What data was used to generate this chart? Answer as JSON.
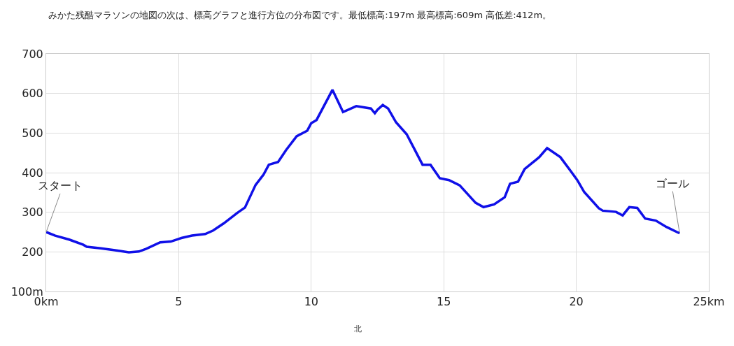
{
  "chart_data": {
    "type": "line",
    "title": "みかた残酷マラソンの地図の次は、標高グラフと進行方位の分布図です。最低標高:197m 最高標高:609m 高低差:412m。",
    "x": [
      0,
      0.34,
      0.87,
      1.4,
      1.53,
      2.06,
      2.6,
      3.12,
      3.5,
      3.78,
      4.3,
      4.7,
      5.1,
      5.5,
      6.0,
      6.3,
      6.7,
      7.2,
      7.5,
      7.9,
      8.2,
      8.4,
      8.75,
      9.05,
      9.45,
      9.85,
      10.0,
      10.2,
      10.8,
      11.2,
      11.7,
      12.25,
      12.4,
      12.5,
      12.7,
      12.9,
      13.2,
      13.6,
      14.2,
      14.5,
      14.85,
      15.2,
      15.6,
      16.2,
      16.5,
      16.9,
      17.3,
      17.5,
      17.8,
      18.05,
      18.6,
      18.9,
      19.4,
      19.8,
      20.05,
      20.3,
      20.85,
      21.0,
      21.5,
      21.75,
      22.0,
      22.3,
      22.6,
      23.0,
      23.4,
      23.8,
      23.9
    ],
    "series": [
      {
        "color": "#1010e8",
        "values": [
          250,
          241,
          231,
          218,
          213,
          209,
          204,
          199,
          201,
          208,
          224,
          226,
          235,
          241,
          245,
          254,
          272,
          298,
          312,
          369,
          395,
          420,
          427,
          457,
          492,
          506,
          525,
          533,
          609,
          553,
          568,
          562,
          550,
          559,
          571,
          562,
          527,
          497,
          420,
          420,
          386,
          381,
          368,
          324,
          313,
          320,
          338,
          372,
          377,
          409,
          439,
          462,
          439,
          403,
          380,
          351,
          310,
          304,
          301,
          292,
          313,
          311,
          284,
          279,
          263,
          250,
          247
        ]
      }
    ],
    "xlim": [
      0,
      25
    ],
    "xticks": [
      {
        "value": 0,
        "label": "0km"
      },
      5,
      10,
      15,
      20,
      {
        "value": 25,
        "label": "25km"
      }
    ],
    "ylim": [
      100,
      700
    ],
    "yticks": [
      {
        "value": 100,
        "label": "100m"
      },
      200,
      300,
      400,
      500,
      600,
      700
    ],
    "grid": true,
    "marker": "none",
    "line_style": "solid",
    "annotations": [
      {
        "text": "スタート",
        "x": 0,
        "y": 250
      },
      {
        "text": "ゴール",
        "x": 23.9,
        "y": 247
      },
      "北"
    ]
  }
}
